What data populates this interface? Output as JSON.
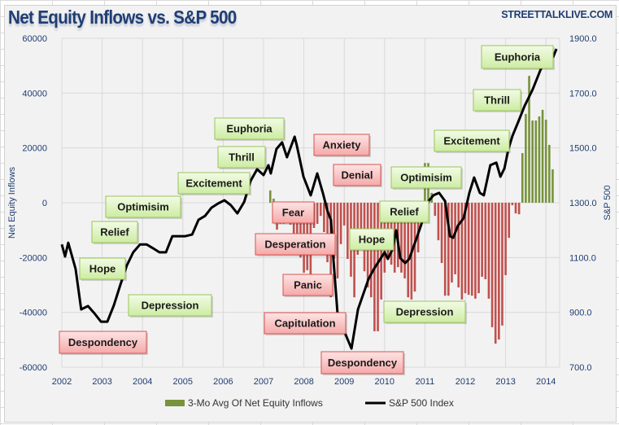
{
  "header": {
    "title": "Net Equity Inflows vs. S&P 500",
    "brand": "STREETTALKLIVE.COM"
  },
  "chart_data": {
    "type": "bar+line",
    "title": "Net Equity Inflows vs. S&P 500",
    "x_ticks": [
      "2002",
      "2003",
      "2004",
      "2005",
      "2006",
      "2007",
      "2008",
      "2009",
      "2010",
      "2011",
      "2012",
      "2013",
      "2014"
    ],
    "y_left": {
      "label": "Net Equity Inflows",
      "ticks": [
        "60000",
        "40000",
        "20000",
        "0",
        "-20000",
        "-40000",
        "-60000"
      ],
      "ylim": [
        -60000,
        60000
      ]
    },
    "y_right": {
      "label": "S&P 500",
      "ticks": [
        "1900.0",
        "1700.0",
        "1500.0",
        "1300.0",
        "1100.0",
        "900.0",
        "700.0"
      ],
      "ylim": [
        700,
        1900
      ]
    },
    "grid": true,
    "legend_position": "bottom",
    "colors": {
      "inflow_positive": "#77933c",
      "inflow_negative": "#c0504d",
      "sp500": "#000000",
      "positive_box": "#d7f0b4",
      "negative_box": "#f8c0c0"
    },
    "series": [
      {
        "name": "3-Mo Avg Of Net Equity Inflows",
        "type": "bar",
        "months": [
          "2007-01",
          "2007-02",
          "2007-03",
          "2007-04",
          "2007-05",
          "2007-06",
          "2007-07",
          "2007-08",
          "2007-09",
          "2007-10",
          "2007-11",
          "2007-12",
          "2008-01",
          "2008-02",
          "2008-03",
          "2008-04",
          "2008-05",
          "2008-06",
          "2008-07",
          "2008-08",
          "2008-09",
          "2008-10",
          "2008-11",
          "2008-12",
          "2009-01",
          "2009-02",
          "2009-03",
          "2009-04",
          "2009-05",
          "2009-06",
          "2009-07",
          "2009-08",
          "2009-09",
          "2009-10",
          "2009-11",
          "2009-12",
          "2010-01",
          "2010-02",
          "2010-03",
          "2010-04",
          "2010-05",
          "2010-06",
          "2010-07",
          "2010-08",
          "2010-09",
          "2010-10",
          "2010-11",
          "2010-12",
          "2011-01",
          "2011-02",
          "2011-03",
          "2011-04",
          "2011-05",
          "2011-06",
          "2011-07",
          "2011-08",
          "2011-09",
          "2011-10",
          "2011-11",
          "2011-12",
          "2012-01",
          "2012-02",
          "2012-03",
          "2012-04",
          "2012-05",
          "2012-06",
          "2012-07",
          "2012-08",
          "2012-09",
          "2012-10",
          "2012-11",
          "2012-12",
          "2013-01",
          "2013-02",
          "2013-03",
          "2013-04",
          "2013-05",
          "2013-06",
          "2013-07",
          "2013-08",
          "2013-09",
          "2013-10",
          "2013-11",
          "2013-12",
          "2014-01",
          "2014-02",
          "2014-03"
        ],
        "values": [
          0,
          0,
          4500,
          1500,
          -9800,
          -7700,
          -7700,
          -5000,
          -8000,
          -12000,
          -15000,
          -20000,
          -25500,
          -24600,
          -26400,
          -9200,
          -7700,
          -4800,
          -10700,
          -21700,
          -34500,
          -20500,
          -27600,
          -15100,
          -8300,
          -20500,
          -27000,
          -34500,
          -19000,
          -15700,
          -25000,
          -30900,
          -34500,
          -46900,
          -46900,
          -35300,
          -25500,
          -19600,
          -22600,
          -25500,
          -23500,
          -25500,
          -27600,
          -34500,
          -35300,
          -32400,
          -18100,
          -5000,
          14500,
          14500,
          3600,
          -4800,
          -13700,
          -22000,
          -33900,
          -33900,
          -29100,
          -26100,
          -30900,
          -35300,
          -33000,
          -33600,
          -33900,
          -35000,
          -33000,
          -27000,
          -27900,
          -35000,
          -45400,
          -51400,
          -49900,
          -44800,
          -26400,
          -12800,
          -900,
          -3900,
          -4200,
          18100,
          32400,
          46300,
          30000,
          30000,
          31500,
          33900,
          30300,
          21100,
          12200
        ]
      },
      {
        "name": "S&P 500 Index",
        "type": "line",
        "points": [
          [
            2002.0,
            1148
          ],
          [
            2002.08,
            1104
          ],
          [
            2002.16,
            1154
          ],
          [
            2002.34,
            1059
          ],
          [
            2002.48,
            911
          ],
          [
            2002.65,
            923
          ],
          [
            2002.81,
            896
          ],
          [
            2002.97,
            866
          ],
          [
            2003.13,
            866
          ],
          [
            2003.29,
            926
          ],
          [
            2003.45,
            1000
          ],
          [
            2003.61,
            1071
          ],
          [
            2003.77,
            1119
          ],
          [
            2003.94,
            1148
          ],
          [
            2004.1,
            1148
          ],
          [
            2004.26,
            1134
          ],
          [
            2004.42,
            1119
          ],
          [
            2004.58,
            1119
          ],
          [
            2004.74,
            1178
          ],
          [
            2004.9,
            1178
          ],
          [
            2005.06,
            1178
          ],
          [
            2005.23,
            1184
          ],
          [
            2005.39,
            1238
          ],
          [
            2005.55,
            1252
          ],
          [
            2005.71,
            1282
          ],
          [
            2005.87,
            1297
          ],
          [
            2006.03,
            1309
          ],
          [
            2006.19,
            1291
          ],
          [
            2006.35,
            1261
          ],
          [
            2006.52,
            1303
          ],
          [
            2006.68,
            1380
          ],
          [
            2006.84,
            1422
          ],
          [
            2007.0,
            1401
          ],
          [
            2007.12,
            1437
          ],
          [
            2007.18,
            1407
          ],
          [
            2007.32,
            1496
          ],
          [
            2007.46,
            1520
          ],
          [
            2007.58,
            1466
          ],
          [
            2007.77,
            1541
          ],
          [
            2007.83,
            1505
          ],
          [
            2007.99,
            1395
          ],
          [
            2008.17,
            1327
          ],
          [
            2008.33,
            1407
          ],
          [
            2008.47,
            1336
          ],
          [
            2008.59,
            1267
          ],
          [
            2008.67,
            1238
          ],
          [
            2008.73,
            1098
          ],
          [
            2008.83,
            902
          ],
          [
            2009.0,
            831
          ],
          [
            2009.18,
            768
          ],
          [
            2009.34,
            911
          ],
          [
            2009.6,
            1021
          ],
          [
            2009.74,
            1059
          ],
          [
            2010.0,
            1119
          ],
          [
            2010.08,
            1095
          ],
          [
            2010.19,
            1128
          ],
          [
            2010.29,
            1199
          ],
          [
            2010.39,
            1098
          ],
          [
            2010.51,
            1080
          ],
          [
            2010.61,
            1095
          ],
          [
            2010.81,
            1178
          ],
          [
            2010.95,
            1238
          ],
          [
            2011.09,
            1306
          ],
          [
            2011.21,
            1327
          ],
          [
            2011.35,
            1336
          ],
          [
            2011.5,
            1306
          ],
          [
            2011.62,
            1178
          ],
          [
            2011.7,
            1172
          ],
          [
            2011.82,
            1217
          ],
          [
            2011.96,
            1244
          ],
          [
            2012.1,
            1336
          ],
          [
            2012.22,
            1392
          ],
          [
            2012.36,
            1336
          ],
          [
            2012.46,
            1327
          ],
          [
            2012.62,
            1437
          ],
          [
            2012.77,
            1446
          ],
          [
            2012.87,
            1395
          ],
          [
            2012.97,
            1425
          ],
          [
            2013.07,
            1496
          ],
          [
            2013.17,
            1544
          ],
          [
            2013.31,
            1594
          ],
          [
            2013.47,
            1653
          ],
          [
            2013.67,
            1713
          ],
          [
            2013.87,
            1787
          ],
          [
            2014.08,
            1826
          ],
          [
            2014.18,
            1832
          ],
          [
            2014.26,
            1861
          ]
        ]
      }
    ],
    "annotations": [
      {
        "text": "Euphoria",
        "sentiment": "positive"
      },
      {
        "text": "Thrill",
        "sentiment": "positive"
      },
      {
        "text": "Excitement",
        "sentiment": "positive"
      },
      {
        "text": "Optimisim",
        "sentiment": "positive"
      },
      {
        "text": "Relief",
        "sentiment": "positive"
      },
      {
        "text": "Hope",
        "sentiment": "positive"
      },
      {
        "text": "Depression",
        "sentiment": "positive"
      },
      {
        "text": "Despondency",
        "sentiment": "negative"
      },
      {
        "text": "Anxiety",
        "sentiment": "negative"
      },
      {
        "text": "Denial",
        "sentiment": "negative"
      },
      {
        "text": "Fear",
        "sentiment": "negative"
      },
      {
        "text": "Desperation",
        "sentiment": "negative"
      },
      {
        "text": "Panic",
        "sentiment": "negative"
      },
      {
        "text": "Capitulation",
        "sentiment": "negative"
      },
      {
        "text": "Despondency",
        "sentiment": "negative"
      },
      {
        "text": "Optimisim",
        "sentiment": "positive"
      },
      {
        "text": "Relief",
        "sentiment": "positive"
      },
      {
        "text": "Hope",
        "sentiment": "positive"
      },
      {
        "text": "Depression",
        "sentiment": "positive"
      },
      {
        "text": "Excitement",
        "sentiment": "positive"
      },
      {
        "text": "Thrill",
        "sentiment": "positive"
      },
      {
        "text": "Euphoria",
        "sentiment": "positive"
      }
    ],
    "legend": [
      "3-Mo Avg Of Net Equity Inflows",
      "S&P 500 Index"
    ]
  }
}
